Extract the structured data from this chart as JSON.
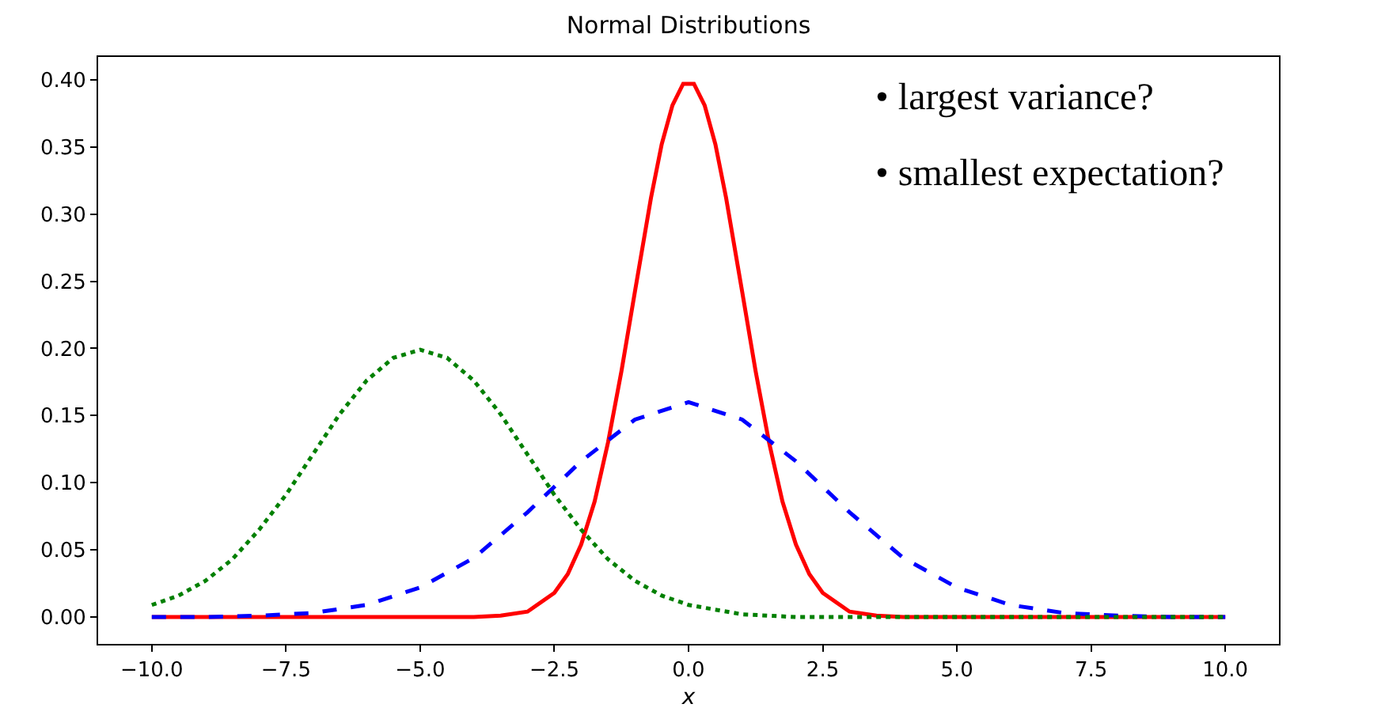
{
  "chart_data": {
    "type": "line",
    "title": "Normal Distributions",
    "xlabel": "x",
    "annotations": [
      "• largest variance?",
      "• smallest expectation?"
    ],
    "series": [
      {
        "color": "#ff0000",
        "line_style": "solid",
        "x": [
          -10,
          -4,
          -3.5,
          -3,
          -2.5,
          -2.25,
          -2,
          -1.75,
          -1.5,
          -1.25,
          -1,
          -0.7,
          -0.5,
          -0.3,
          -0.1,
          0.1,
          0.3,
          0.5,
          0.7,
          1,
          1.25,
          1.5,
          1.75,
          2,
          2.25,
          2.5,
          3,
          3.5,
          4,
          10
        ],
        "values": [
          0,
          0,
          0.001,
          0.004,
          0.018,
          0.032,
          0.054,
          0.086,
          0.13,
          0.183,
          0.242,
          0.312,
          0.352,
          0.381,
          0.397,
          0.397,
          0.381,
          0.352,
          0.312,
          0.242,
          0.183,
          0.13,
          0.086,
          0.054,
          0.032,
          0.018,
          0.004,
          0.001,
          0,
          0
        ]
      },
      {
        "color": "#0000ff",
        "line_style": "dashed",
        "x": [
          -10,
          -9,
          -8,
          -7,
          -6,
          -5,
          -4,
          -3,
          -2,
          -1,
          0,
          1,
          2,
          3,
          4,
          5,
          6,
          7,
          8,
          9,
          10
        ],
        "values": [
          0,
          0,
          0.001,
          0.003,
          0.009,
          0.022,
          0.044,
          0.078,
          0.116,
          0.147,
          0.16,
          0.147,
          0.116,
          0.078,
          0.044,
          0.022,
          0.009,
          0.003,
          0.001,
          0,
          0
        ]
      },
      {
        "color": "#008000",
        "line_style": "dotted",
        "x": [
          -10,
          -9.5,
          -9,
          -8.5,
          -8,
          -7.5,
          -7,
          -6.5,
          -6,
          -5.5,
          -5,
          -4.5,
          -4,
          -3.5,
          -3,
          -2.5,
          -2,
          -1.5,
          -1,
          -0.5,
          0,
          1,
          2,
          3,
          4,
          10
        ],
        "values": [
          0.009,
          0.016,
          0.027,
          0.043,
          0.065,
          0.091,
          0.121,
          0.151,
          0.176,
          0.193,
          0.199,
          0.193,
          0.176,
          0.151,
          0.121,
          0.091,
          0.065,
          0.043,
          0.027,
          0.016,
          0.009,
          0.002,
          0,
          0,
          0,
          0
        ]
      }
    ],
    "xlim": [
      -11,
      11
    ],
    "xticks": [
      {
        "value": -10,
        "label": "−10.0"
      },
      {
        "value": -7.5,
        "label": "−7.5"
      },
      {
        "value": -5,
        "label": "−5.0"
      },
      {
        "value": -2.5,
        "label": "−2.5"
      },
      {
        "value": 0,
        "label": "0.0"
      },
      {
        "value": 2.5,
        "label": "2.5"
      },
      {
        "value": 5,
        "label": "5.0"
      },
      {
        "value": 7.5,
        "label": "7.5"
      },
      {
        "value": 10,
        "label": "10.0"
      }
    ],
    "ylim": [
      -0.02,
      0.417
    ],
    "yticks": [
      {
        "value": 0,
        "label": "0.00"
      },
      {
        "value": 0.05,
        "label": "0.05"
      },
      {
        "value": 0.1,
        "label": "0.10"
      },
      {
        "value": 0.15,
        "label": "0.15"
      },
      {
        "value": 0.2,
        "label": "0.20"
      },
      {
        "value": 0.25,
        "label": "0.25"
      },
      {
        "value": 0.3,
        "label": "0.30"
      },
      {
        "value": 0.35,
        "label": "0.35"
      },
      {
        "value": 0.4,
        "label": "0.40"
      }
    ],
    "marker": "none"
  }
}
